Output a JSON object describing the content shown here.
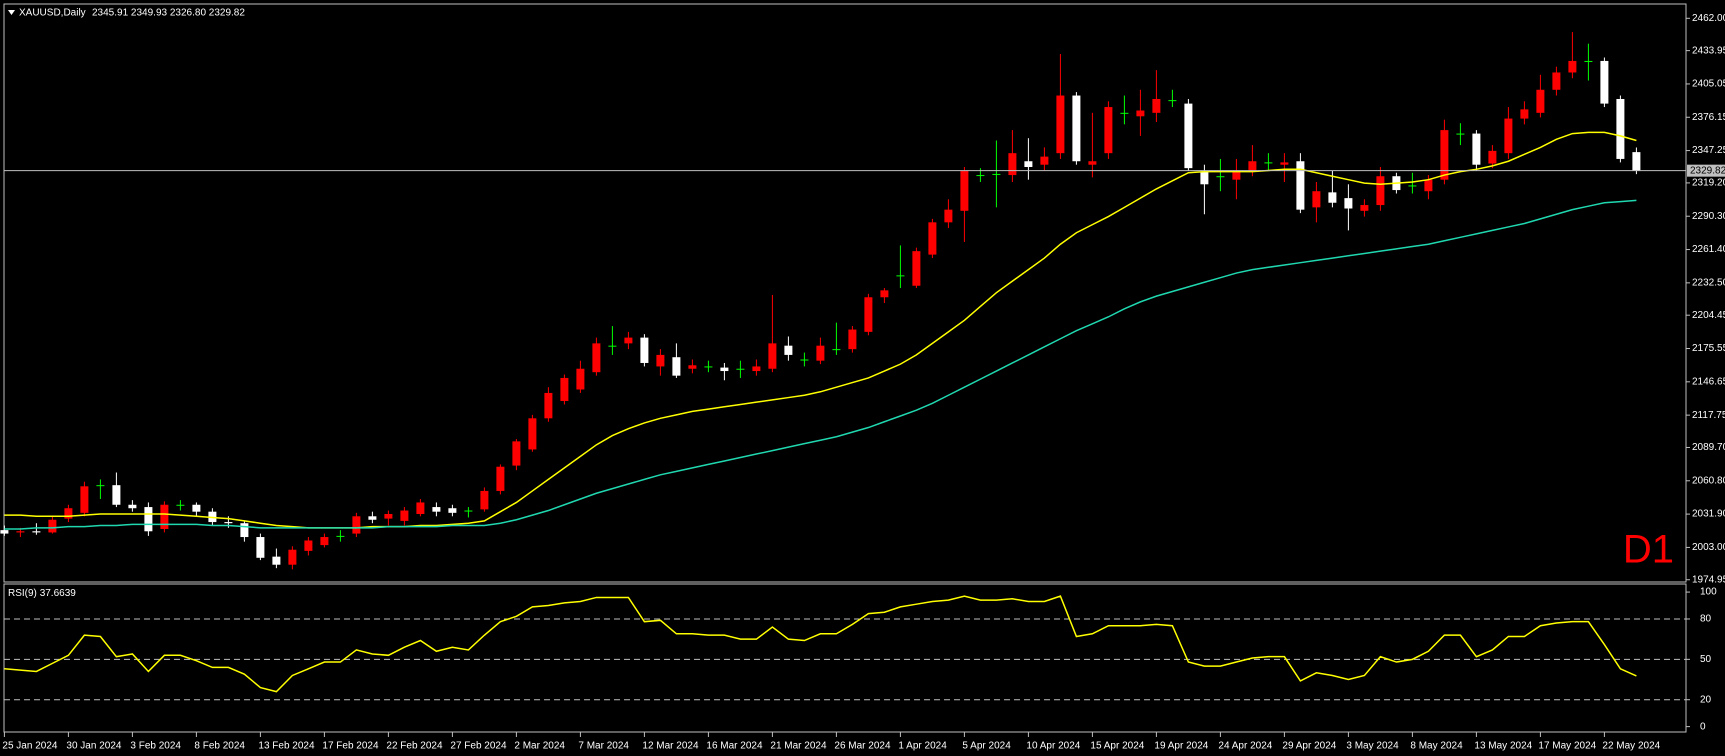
{
  "chart_data": [
    {
      "type": "candlestick",
      "title": "XAUUSD,Daily",
      "subtitle": "2345.91 2349.93 2326.80 2329.82",
      "annotation": "D1",
      "categories": [
        "25 Jan 2024",
        null,
        null,
        null,
        "30 Jan 2024",
        null,
        null,
        null,
        "3 Feb 2024",
        null,
        null,
        null,
        "8 Feb 2024",
        null,
        null,
        null,
        "13 Feb 2024",
        null,
        null,
        null,
        "17 Feb 2024",
        null,
        null,
        null,
        "22 Feb 2024",
        null,
        null,
        null,
        "27 Feb 2024",
        null,
        null,
        null,
        "2 Mar 2024",
        null,
        null,
        null,
        "7 Mar 2024",
        null,
        null,
        null,
        "12 Mar 2024",
        null,
        null,
        null,
        "16 Mar 2024",
        null,
        null,
        null,
        "21 Mar 2024",
        null,
        null,
        null,
        "26 Mar 2024",
        null,
        null,
        null,
        "1 Apr 2024",
        null,
        null,
        null,
        "5 Apr 2024",
        null,
        null,
        null,
        "10 Apr 2024",
        null,
        null,
        null,
        "15 Apr 2024",
        null,
        null,
        null,
        "19 Apr 2024",
        null,
        null,
        null,
        "24 Apr 2024",
        null,
        null,
        null,
        "29 Apr 2024",
        null,
        null,
        null,
        "3 May 2024",
        null,
        null,
        null,
        "8 May 2024",
        null,
        null,
        null,
        "13 May 2024",
        null,
        null,
        null,
        "17 May 2024",
        null,
        null,
        null,
        "22 May 2024",
        null,
        null
      ],
      "ohlc": [
        [
          2018,
          2022,
          2013,
          2015
        ],
        [
          2016,
          2020,
          2012,
          2017
        ],
        [
          2017,
          2024,
          2014,
          2016
        ],
        [
          2016,
          2030,
          2015,
          2027
        ],
        [
          2028,
          2040,
          2025,
          2037
        ],
        [
          2033,
          2060,
          2030,
          2056
        ],
        [
          2057,
          2062,
          2045,
          2057
        ],
        [
          2057,
          2068,
          2038,
          2040
        ],
        [
          2040,
          2044,
          2034,
          2037
        ],
        [
          2038,
          2042,
          2013,
          2017
        ],
        [
          2019,
          2043,
          2016,
          2040
        ],
        [
          2040,
          2044,
          2035,
          2040
        ],
        [
          2040,
          2042,
          2030,
          2034
        ],
        [
          2034,
          2037,
          2022,
          2025
        ],
        [
          2025,
          2030,
          2020,
          2024
        ],
        [
          2024,
          2026,
          2008,
          2012
        ],
        [
          2012,
          2015,
          1992,
          1994
        ],
        [
          1995,
          2002,
          1985,
          1988
        ],
        [
          1988,
          2004,
          1984,
          2001
        ],
        [
          2000,
          2012,
          1996,
          2009
        ],
        [
          2005,
          2015,
          2003,
          2012
        ],
        [
          2013,
          2018,
          2008,
          2013
        ],
        [
          2015,
          2033,
          2012,
          2030
        ],
        [
          2030,
          2034,
          2024,
          2027
        ],
        [
          2028,
          2035,
          2022,
          2032
        ],
        [
          2026,
          2038,
          2022,
          2035
        ],
        [
          2032,
          2045,
          2030,
          2042
        ],
        [
          2038,
          2042,
          2030,
          2034
        ],
        [
          2037,
          2040,
          2030,
          2033
        ],
        [
          2035,
          2038,
          2029,
          2035
        ],
        [
          2036,
          2055,
          2034,
          2052
        ],
        [
          2052,
          2075,
          2049,
          2073
        ],
        [
          2074,
          2097,
          2070,
          2095
        ],
        [
          2088,
          2118,
          2086,
          2115
        ],
        [
          2115,
          2142,
          2112,
          2137
        ],
        [
          2130,
          2153,
          2127,
          2150
        ],
        [
          2140,
          2165,
          2137,
          2158
        ],
        [
          2155,
          2185,
          2152,
          2180
        ],
        [
          2178,
          2195,
          2170,
          2178
        ],
        [
          2180,
          2190,
          2175,
          2185
        ],
        [
          2185,
          2188,
          2160,
          2163
        ],
        [
          2160,
          2175,
          2152,
          2170
        ],
        [
          2168,
          2180,
          2150,
          2152
        ],
        [
          2158,
          2166,
          2154,
          2161
        ],
        [
          2160,
          2165,
          2155,
          2160
        ],
        [
          2159,
          2163,
          2148,
          2156
        ],
        [
          2158,
          2165,
          2150,
          2158
        ],
        [
          2156,
          2166,
          2152,
          2160
        ],
        [
          2158,
          2222,
          2155,
          2180
        ],
        [
          2178,
          2186,
          2165,
          2170
        ],
        [
          2166,
          2172,
          2160,
          2166
        ],
        [
          2165,
          2185,
          2162,
          2178
        ],
        [
          2175,
          2198,
          2170,
          2175
        ],
        [
          2175,
          2195,
          2172,
          2192
        ],
        [
          2190,
          2223,
          2187,
          2220
        ],
        [
          2220,
          2228,
          2215,
          2226
        ],
        [
          2239,
          2265,
          2228,
          2239
        ],
        [
          2230,
          2263,
          2228,
          2260
        ],
        [
          2257,
          2288,
          2254,
          2285
        ],
        [
          2285,
          2305,
          2280,
          2296
        ],
        [
          2295,
          2333,
          2268,
          2330
        ],
        [
          2326,
          2332,
          2320,
          2326
        ],
        [
          2327,
          2356,
          2298,
          2327
        ],
        [
          2326,
          2365,
          2320,
          2345
        ],
        [
          2338,
          2358,
          2322,
          2333
        ],
        [
          2335,
          2350,
          2330,
          2342
        ],
        [
          2345,
          2431,
          2340,
          2395
        ],
        [
          2395,
          2398,
          2335,
          2338
        ],
        [
          2335,
          2380,
          2324,
          2338
        ],
        [
          2345,
          2390,
          2340,
          2385
        ],
        [
          2380,
          2395,
          2370,
          2380
        ],
        [
          2377,
          2400,
          2360,
          2382
        ],
        [
          2380,
          2417,
          2372,
          2392
        ],
        [
          2391,
          2400,
          2385,
          2391
        ],
        [
          2388,
          2392,
          2330,
          2332
        ],
        [
          2329,
          2335,
          2292,
          2318
        ],
        [
          2325,
          2340,
          2312,
          2325
        ],
        [
          2322,
          2340,
          2305,
          2330
        ],
        [
          2330,
          2352,
          2325,
          2338
        ],
        [
          2337,
          2345,
          2330,
          2337
        ],
        [
          2335,
          2345,
          2320,
          2337
        ],
        [
          2338,
          2345,
          2293,
          2296
        ],
        [
          2298,
          2320,
          2285,
          2312
        ],
        [
          2311,
          2330,
          2298,
          2302
        ],
        [
          2306,
          2318,
          2278,
          2297
        ],
        [
          2295,
          2305,
          2290,
          2300
        ],
        [
          2300,
          2333,
          2295,
          2325
        ],
        [
          2325,
          2328,
          2310,
          2313
        ],
        [
          2317,
          2328,
          2310,
          2317
        ],
        [
          2312,
          2326,
          2305,
          2322
        ],
        [
          2322,
          2374,
          2318,
          2365
        ],
        [
          2362,
          2371,
          2352,
          2362
        ],
        [
          2362,
          2365,
          2330,
          2335
        ],
        [
          2336,
          2352,
          2332,
          2347
        ],
        [
          2345,
          2385,
          2340,
          2375
        ],
        [
          2375,
          2390,
          2370,
          2383
        ],
        [
          2380,
          2413,
          2376,
          2400
        ],
        [
          2400,
          2420,
          2395,
          2415
        ],
        [
          2415,
          2450,
          2410,
          2425
        ],
        [
          2425,
          2440,
          2408,
          2425
        ],
        [
          2425,
          2428,
          2385,
          2388
        ],
        [
          2392,
          2395,
          2337,
          2340
        ],
        [
          2345.91,
          2349.93,
          2326.8,
          2329.82
        ]
      ],
      "up_color": "#ff0000",
      "down_color": "#ffffff",
      "doji_color": "#00ff00",
      "series": [
        {
          "color": "#ffff00",
          "values": [
            2031,
            2031,
            2030,
            2030,
            2030,
            2031,
            2032,
            2032,
            2032,
            2032,
            2032,
            2031,
            2030,
            2029,
            2028,
            2026,
            2024,
            2022,
            2021,
            2020,
            2020,
            2020,
            2020,
            2021,
            2021,
            2021,
            2022,
            2022,
            2023,
            2024,
            2026,
            2034,
            2042,
            2052,
            2062,
            2072,
            2082,
            2092,
            2100,
            2106,
            2111,
            2115,
            2118,
            2121,
            2123,
            2125,
            2127,
            2129,
            2131,
            2133,
            2135,
            2138,
            2142,
            2146,
            2150,
            2156,
            2162,
            2170,
            2180,
            2190,
            2200,
            2212,
            2224,
            2234,
            2244,
            2254,
            2266,
            2276,
            2283,
            2290,
            2298,
            2306,
            2314,
            2321,
            2328,
            2329,
            2329,
            2329,
            2329,
            2330,
            2331,
            2331,
            2328,
            2325,
            2322,
            2319,
            2318,
            2319,
            2320,
            2322,
            2326,
            2329,
            2331,
            2334,
            2338,
            2344,
            2350,
            2357,
            2362,
            2363,
            2363,
            2360,
            2356
          ]
        },
        {
          "color": "#20d8b0",
          "values": [
            2019,
            2019,
            2020,
            2020,
            2021,
            2021,
            2022,
            2022,
            2023,
            2023,
            2023,
            2023,
            2023,
            2022,
            2022,
            2021,
            2020,
            2020,
            2020,
            2020,
            2020,
            2020,
            2020,
            2020,
            2021,
            2021,
            2021,
            2021,
            2022,
            2022,
            2022,
            2024,
            2027,
            2031,
            2035,
            2040,
            2045,
            2050,
            2054,
            2058,
            2062,
            2066,
            2069,
            2072,
            2075,
            2078,
            2081,
            2084,
            2087,
            2090,
            2093,
            2096,
            2099,
            2103,
            2107,
            2112,
            2117,
            2122,
            2128,
            2135,
            2142,
            2149,
            2156,
            2163,
            2170,
            2177,
            2184,
            2191,
            2197,
            2203,
            2210,
            2216,
            2221,
            2225,
            2229,
            2233,
            2237,
            2241,
            2244,
            2246,
            2248,
            2250,
            2252,
            2254,
            2256,
            2258,
            2260,
            2262,
            2264,
            2266,
            2269,
            2272,
            2275,
            2278,
            2281,
            2284,
            2288,
            2292,
            2296,
            2299,
            2302,
            2303,
            2304
          ]
        }
      ],
      "last_price": 2329.82,
      "ylim": [
        1973,
        2474.4
      ],
      "yticks": [
        {
          "value": 2462,
          "label": "2462.00"
        },
        {
          "value": 2433.95,
          "label": "2433.95"
        },
        {
          "value": 2405.05,
          "label": "2405.05"
        },
        {
          "value": 2376.15,
          "label": "2376.15"
        },
        {
          "value": 2347.25,
          "label": "2347.25"
        },
        {
          "value": 2319.2,
          "label": "2319.20"
        },
        {
          "value": 2290.3,
          "label": "2290.30"
        },
        {
          "value": 2261.4,
          "label": "2261.40"
        },
        {
          "value": 2232.5,
          "label": "2232.50"
        },
        {
          "value": 2204.45,
          "label": "2204.45"
        },
        {
          "value": 2175.55,
          "label": "2175.55"
        },
        {
          "value": 2146.65,
          "label": "2146.65"
        },
        {
          "value": 2117.75,
          "label": "2117.75"
        },
        {
          "value": 2089.7,
          "label": "2089.70"
        },
        {
          "value": 2060.8,
          "label": "2060.80"
        },
        {
          "value": 2031.9,
          "label": "2031.90"
        },
        {
          "value": 2003,
          "label": "2003.00"
        },
        {
          "value": 1974.95,
          "label": "1974.95"
        }
      ]
    },
    {
      "type": "line",
      "title": "RSI(9)",
      "color": "#ffff00",
      "values": [
        43,
        42,
        41,
        47,
        53,
        68,
        67,
        52,
        54,
        41,
        53,
        53,
        49,
        44,
        44,
        39,
        29,
        26,
        38,
        43,
        48,
        48,
        57,
        54,
        53,
        59,
        64,
        56,
        59,
        57,
        68,
        78,
        82,
        89,
        90,
        92,
        93,
        96,
        96,
        96,
        78,
        79,
        69,
        69,
        68,
        68,
        65,
        65,
        74,
        65,
        64,
        69,
        69,
        76,
        84,
        85,
        89,
        91,
        93,
        94,
        97,
        94,
        94,
        95,
        93,
        93,
        97,
        67,
        69,
        75,
        75,
        75,
        76,
        75,
        48,
        45,
        45,
        48,
        51,
        52,
        52,
        34,
        40,
        38,
        35,
        38,
        52,
        48,
        50,
        56,
        68,
        68,
        52,
        57,
        67,
        67,
        75,
        77,
        78,
        78,
        61,
        43,
        37.6639
      ],
      "ylim": [
        -4,
        106
      ],
      "yticks": [
        100,
        80,
        50,
        20,
        0
      ],
      "levels": [
        80,
        50,
        20
      ]
    }
  ]
}
